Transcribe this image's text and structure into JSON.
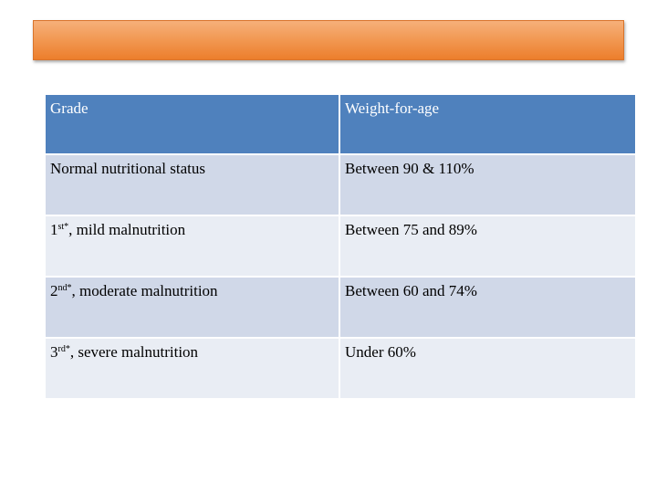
{
  "table": {
    "headers": [
      "Grade",
      "Weight-for-age"
    ],
    "rows": [
      {
        "grade_main": "Normal nutritional status",
        "grade_sup": "",
        "grade_rest": "",
        "weight": "Between 90 & 110%"
      },
      {
        "grade_main": "1",
        "grade_sup": "st*",
        "grade_rest": ", mild malnutrition",
        "weight": "Between 75 and 89%"
      },
      {
        "grade_main": "2",
        "grade_sup": "nd*",
        "grade_rest": ", moderate malnutrition",
        "weight": "Between 60 and 74%"
      },
      {
        "grade_main": "3",
        "grade_sup": "rd*",
        "grade_rest": ", severe malnutrition",
        "weight": "Under 60%"
      }
    ]
  },
  "colors": {
    "title_bar": "#f29a55",
    "header_bg": "#4f81bd",
    "row_dark": "#d0d8e8",
    "row_light": "#e9edf4"
  }
}
